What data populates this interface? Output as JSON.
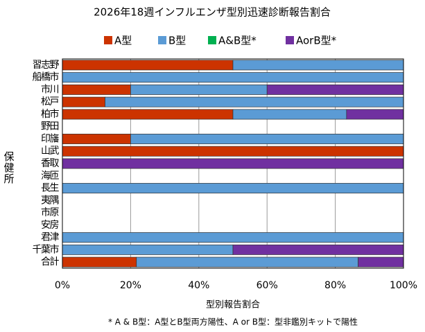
{
  "chart_data": {
    "type": "stacked-barh",
    "title": "2026年18週インフルエンザ型別迅速診断報告割合",
    "y_label": "保健所",
    "x_label": "型別報告割合",
    "footnote": "* A & B型：A型とB型両方陽性、A or B型：型非鑑別キットで陽性",
    "categories": [
      "習志野",
      "船橋市",
      "市川",
      "松戸",
      "柏市",
      "野田",
      "印旛",
      "山武",
      "香取",
      "海匝",
      "長生",
      "夷隅",
      "市原",
      "安房",
      "君津",
      "千葉市",
      "合計"
    ],
    "series": [
      {
        "name": "A型",
        "color": "#cc3300",
        "values": [
          50,
          0,
          20,
          12.5,
          50,
          0,
          20,
          100,
          0,
          0,
          0,
          0,
          0,
          0,
          0,
          0,
          21.7
        ]
      },
      {
        "name": "B型",
        "color": "#5b9bd5",
        "values": [
          50,
          100,
          40,
          87.5,
          33.3,
          0,
          80,
          0,
          0,
          0,
          100,
          0,
          0,
          0,
          100,
          50,
          65
        ]
      },
      {
        "name": "A&B型*",
        "color": "#00b050",
        "values": [
          0,
          0,
          0,
          0,
          0,
          0,
          0,
          0,
          0,
          0,
          0,
          0,
          0,
          0,
          0,
          0,
          0
        ]
      },
      {
        "name": "AorB型*",
        "color": "#7030a0",
        "values": [
          0,
          0,
          40,
          0,
          16.7,
          0,
          0,
          0,
          100,
          0,
          0,
          0,
          0,
          0,
          0,
          50,
          13.3
        ]
      }
    ],
    "xlim": [
      0,
      100
    ],
    "xticks": [
      {
        "value": 0,
        "label": "0%"
      },
      {
        "value": 20,
        "label": "20%"
      },
      {
        "value": 40,
        "label": "40%"
      },
      {
        "value": 60,
        "label": "60%"
      },
      {
        "value": 80,
        "label": "80%"
      },
      {
        "value": 100,
        "label": "100%"
      }
    ],
    "grid": true
  }
}
